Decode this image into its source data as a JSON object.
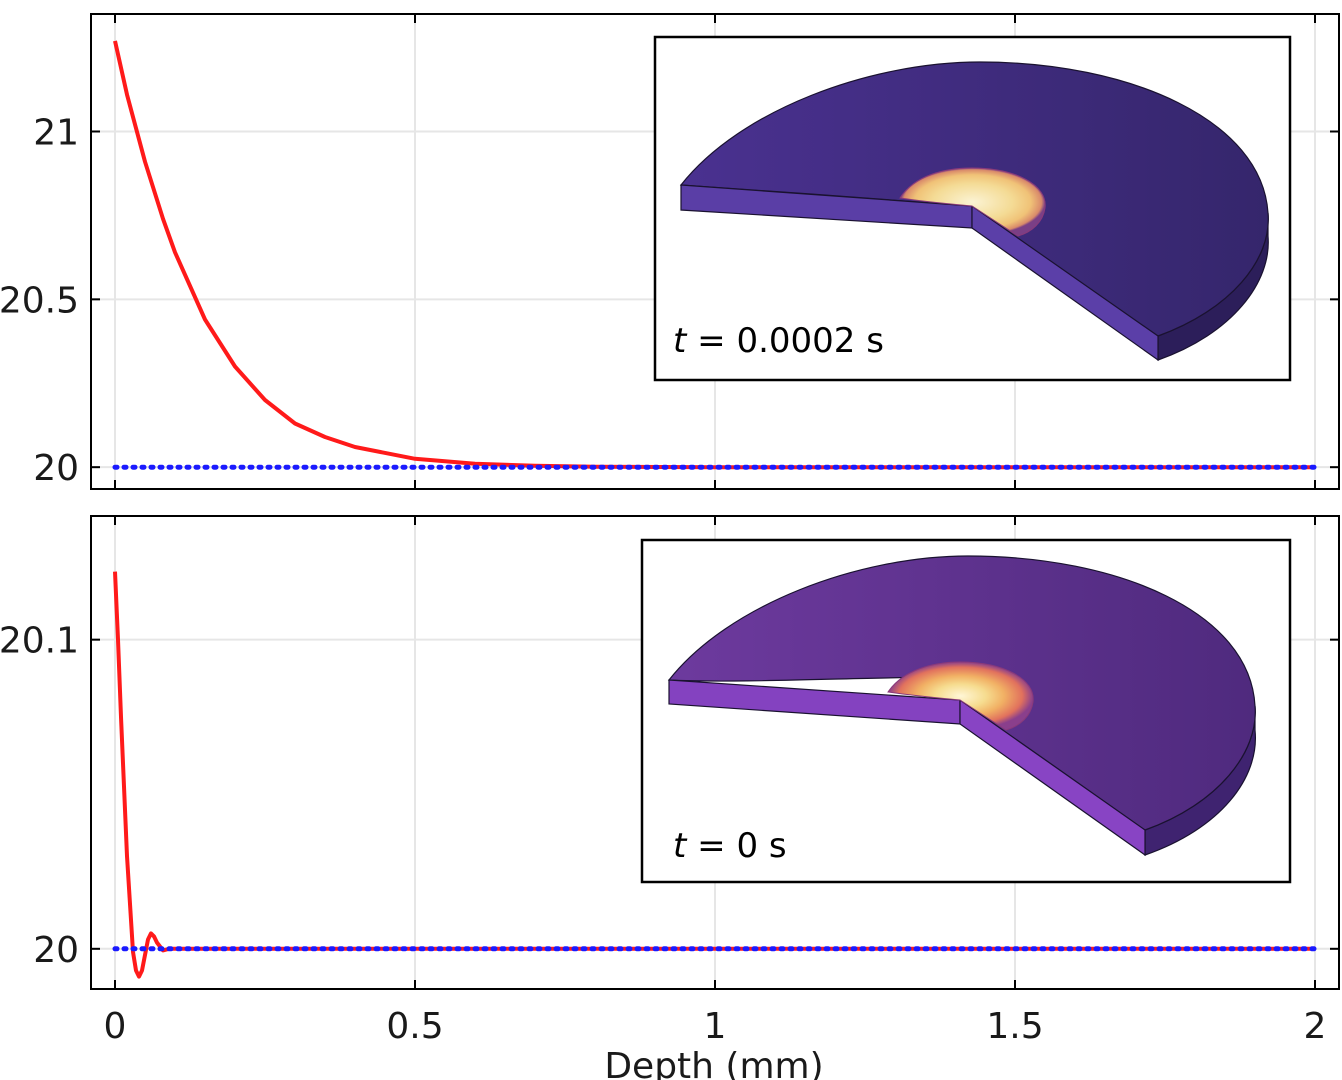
{
  "colors": {
    "series_red": "#ff1a1a",
    "series_blue": "#1a1aff",
    "grid": "#e6e6e6",
    "frame": "#000000",
    "disk_top_early": "#3d2a78",
    "disk_side_early": "#5a3ea6",
    "disk_top_late": "#5a2e8c",
    "disk_side_late": "#8442c0",
    "hot_core": "#f3d98e"
  },
  "chart_data": [
    {
      "type": "line",
      "title": "",
      "xlabel": "",
      "ylabel": "",
      "xlim": [
        -0.04,
        2.04
      ],
      "ylim": [
        19.935,
        21.35
      ],
      "grid": true,
      "xticks": [
        0,
        0.5,
        1,
        1.5,
        2
      ],
      "yticks": [
        20,
        20.5,
        21
      ],
      "ytick_labels": [
        "20",
        "20.5",
        "21"
      ],
      "series": [
        {
          "style": "solid",
          "color": "red",
          "x": [
            0,
            0.02,
            0.05,
            0.08,
            0.1,
            0.15,
            0.2,
            0.25,
            0.3,
            0.35,
            0.4,
            0.5,
            0.6,
            0.7,
            0.8,
            1.0,
            1.5,
            2.0
          ],
          "y": [
            21.27,
            21.11,
            20.91,
            20.74,
            20.64,
            20.44,
            20.3,
            20.2,
            20.13,
            20.09,
            20.06,
            20.025,
            20.01,
            20.004,
            20.001,
            20.0,
            20.0,
            20.0
          ]
        },
        {
          "style": "dotted",
          "color": "blue",
          "x": [
            0,
            2.0
          ],
          "y": [
            20.0,
            20.0
          ]
        }
      ],
      "inset": {
        "label_var": "t",
        "label_rest": " = 0.0002 s"
      }
    },
    {
      "type": "line",
      "title": "",
      "xlabel": "Depth (mm)",
      "ylabel": "",
      "xlim": [
        -0.04,
        2.04
      ],
      "ylim": [
        19.987,
        20.14
      ],
      "grid": true,
      "xticks": [
        0,
        0.5,
        1,
        1.5,
        2
      ],
      "xtick_labels": [
        "0",
        "0.5",
        "1",
        "1.5",
        "2"
      ],
      "yticks": [
        20,
        20.1
      ],
      "ytick_labels": [
        "20",
        "20.1"
      ],
      "series": [
        {
          "style": "solid",
          "color": "red",
          "x": [
            0,
            0.005,
            0.01,
            0.02,
            0.03,
            0.035,
            0.04,
            0.045,
            0.05,
            0.055,
            0.06,
            0.065,
            0.07,
            0.08,
            0.09,
            0.1,
            0.15,
            2.0
          ],
          "y": [
            20.122,
            20.1,
            20.075,
            20.03,
            19.999,
            19.993,
            19.991,
            19.993,
            19.998,
            20.003,
            20.005,
            20.004,
            20.002,
            19.9995,
            20.0,
            20.0,
            20.0,
            20.0
          ]
        },
        {
          "style": "dotted",
          "color": "blue",
          "x": [
            0,
            2.0
          ],
          "y": [
            20.0,
            20.0
          ]
        }
      ],
      "inset": {
        "label_var": "t",
        "label_rest": " = 0 s"
      }
    }
  ]
}
